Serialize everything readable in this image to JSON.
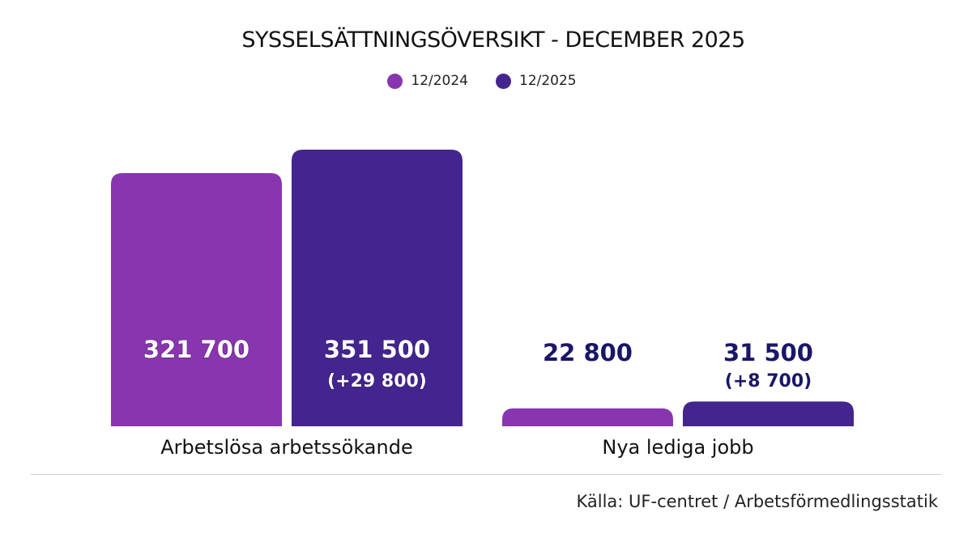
{
  "chart_data": {
    "type": "bar",
    "title": "SYSSELSÄTTNINGSÖVERSIKT - DECEMBER 2025",
    "categories": [
      "Arbetslösa arbetssökande",
      "Nya lediga jobb"
    ],
    "series": [
      {
        "name": "12/2024",
        "color": "#8a35b0",
        "values": [
          321700,
          22800
        ],
        "labels": [
          "321 700",
          "22 800"
        ],
        "sublabels": [
          "",
          ""
        ]
      },
      {
        "name": "12/2025",
        "color": "#442590",
        "values": [
          351500,
          31500
        ],
        "labels": [
          "351 500",
          "31 500"
        ],
        "sublabels": [
          "(+29 800)",
          "(+8 700)"
        ]
      }
    ],
    "legend_position": "top-center",
    "grid": false,
    "ylim": [
      0,
      351500
    ],
    "source": "Källa: UF-centret / Arbetsförmedlingsstatik"
  }
}
